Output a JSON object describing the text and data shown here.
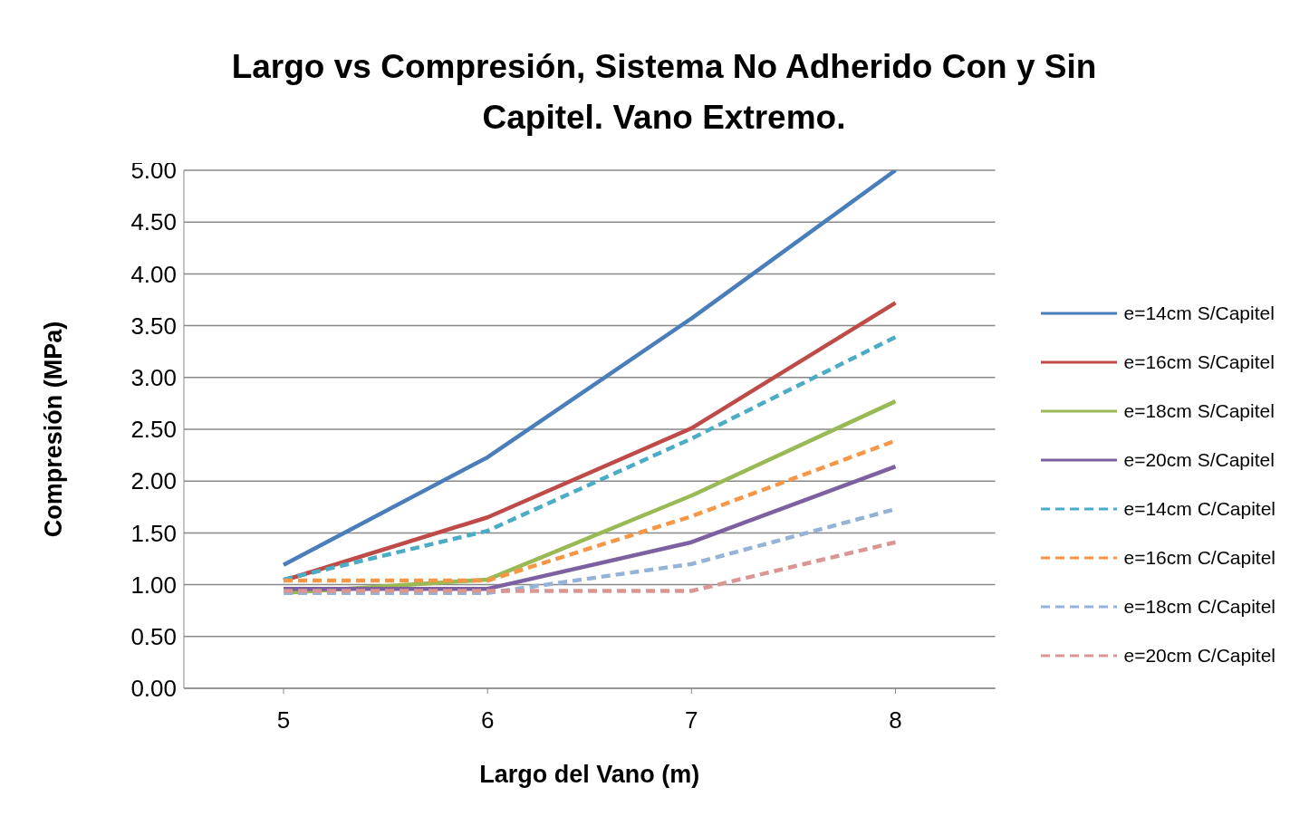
{
  "chart_data": {
    "type": "line",
    "title": "Largo vs Compresión, Sistema No Adherido Con y Sin Capitel. Vano Extremo.",
    "xlabel": "Largo del Vano (m)",
    "ylabel": "Compresión (MPa)",
    "categories": [
      "5",
      "6",
      "7",
      "8"
    ],
    "ylim": [
      0,
      5
    ],
    "yticks": [
      {
        "value": 0,
        "label": "0.00"
      },
      {
        "value": 0.5,
        "label": "0.50"
      },
      {
        "value": 1,
        "label": "1.00"
      },
      {
        "value": 1.5,
        "label": "1.50"
      },
      {
        "value": 2,
        "label": "2.00"
      },
      {
        "value": 2.5,
        "label": "2.50"
      },
      {
        "value": 3,
        "label": "3.00"
      },
      {
        "value": 3.5,
        "label": "3.50"
      },
      {
        "value": 4,
        "label": "4.00"
      },
      {
        "value": 4.5,
        "label": "4.50"
      },
      {
        "value": 5,
        "label": "5.00"
      }
    ],
    "grid": "y",
    "legend": "right",
    "marker": "none",
    "series": [
      {
        "name": "e=14cm S/Capitel",
        "color": "#4a7ebb",
        "line_style": "solid",
        "values": [
          1.19,
          2.23,
          3.57,
          5.0
        ]
      },
      {
        "name": "e=16cm S/Capitel",
        "color": "#be4b48",
        "line_style": "solid",
        "values": [
          1.04,
          1.65,
          2.51,
          3.72
        ]
      },
      {
        "name": "e=18cm S/Capitel",
        "color": "#98b954",
        "line_style": "solid",
        "values": [
          0.92,
          1.05,
          1.86,
          2.77
        ]
      },
      {
        "name": "e=20cm S/Capitel",
        "color": "#7d60a0",
        "line_style": "solid",
        "values": [
          0.96,
          0.96,
          1.41,
          2.14
        ]
      },
      {
        "name": "e=14cm C/Capitel",
        "color": "#4bacc6",
        "line_style": "dashed",
        "values": [
          1.05,
          1.52,
          2.41,
          3.39
        ]
      },
      {
        "name": "e=16cm C/Capitel",
        "color": "#f79646",
        "line_style": "dashed",
        "values": [
          1.04,
          1.04,
          1.66,
          2.39
        ]
      },
      {
        "name": "e=18cm C/Capitel",
        "color": "#95b3d7",
        "line_style": "dashed",
        "values": [
          0.92,
          0.92,
          1.2,
          1.73
        ]
      },
      {
        "name": "e=20cm C/Capitel",
        "color": "#d99694",
        "line_style": "dashed",
        "values": [
          0.94,
          0.94,
          0.94,
          1.41
        ]
      }
    ]
  }
}
